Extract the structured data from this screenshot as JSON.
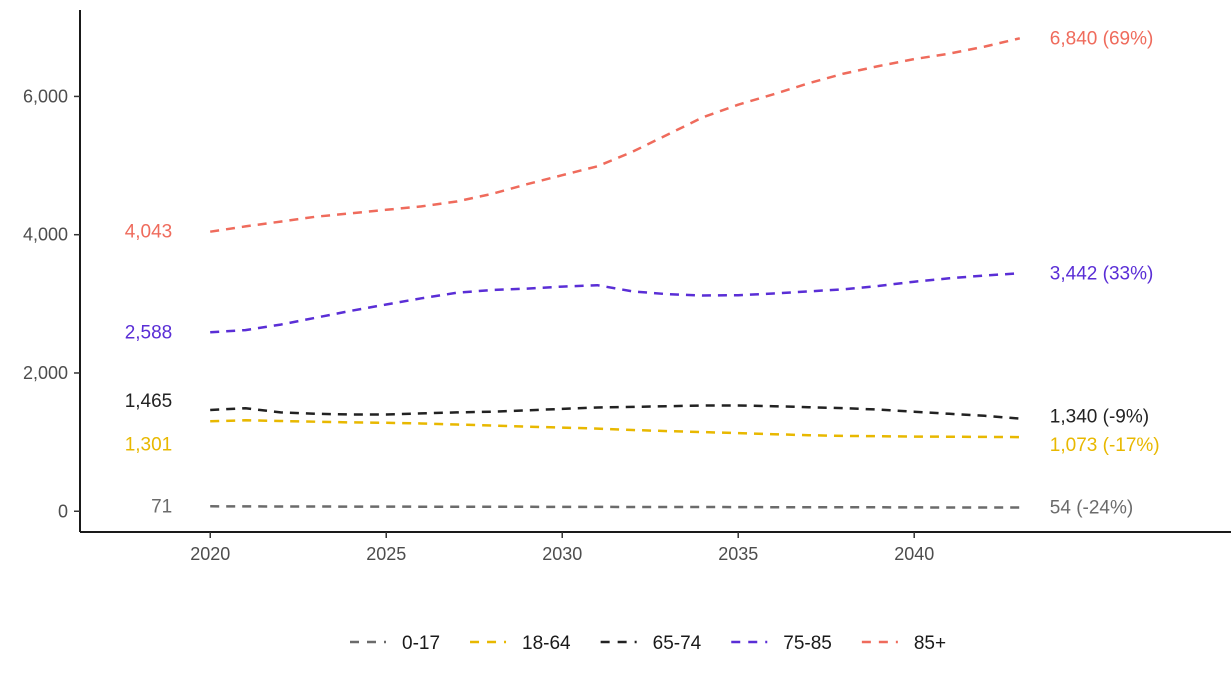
{
  "chart_data": {
    "type": "line",
    "title": "",
    "xlabel": "",
    "ylabel": "",
    "x": [
      2020,
      2021,
      2022,
      2023,
      2024,
      2025,
      2026,
      2027,
      2028,
      2029,
      2030,
      2031,
      2032,
      2033,
      2034,
      2035,
      2036,
      2037,
      2038,
      2039,
      2040,
      2041,
      2042,
      2043
    ],
    "xlim": [
      2016.3,
      2049
    ],
    "ylim": [
      -300,
      7250
    ],
    "x_ticks": [
      2020,
      2025,
      2030,
      2035,
      2040
    ],
    "x_tick_labels": [
      "2020",
      "2025",
      "2030",
      "2035",
      "2040"
    ],
    "y_ticks": [
      0,
      2000,
      4000,
      6000
    ],
    "y_tick_labels": [
      "0",
      "2,000",
      "4,000",
      "6,000"
    ],
    "grid": false,
    "line_style": "dashed",
    "legend_position": "bottom",
    "series": [
      {
        "name": "0-17",
        "color": "#6b6b6b",
        "values": [
          71,
          70,
          69,
          69,
          68,
          67,
          66,
          66,
          65,
          64,
          63,
          63,
          62,
          61,
          61,
          60,
          59,
          58,
          58,
          57,
          56,
          55,
          55,
          54
        ],
        "start_label": "71",
        "end_label": "54 (-24%)"
      },
      {
        "name": "18-64",
        "color": "#e8b800",
        "values": [
          1301,
          1315,
          1305,
          1295,
          1285,
          1280,
          1270,
          1255,
          1240,
          1225,
          1210,
          1195,
          1175,
          1160,
          1145,
          1130,
          1115,
          1100,
          1090,
          1085,
          1080,
          1078,
          1075,
          1073
        ],
        "start_label": "1,301",
        "end_label": "1,073 (-17%)"
      },
      {
        "name": "65-74",
        "color": "#222222",
        "values": [
          1465,
          1490,
          1430,
          1410,
          1400,
          1400,
          1415,
          1430,
          1440,
          1460,
          1480,
          1500,
          1510,
          1520,
          1530,
          1530,
          1520,
          1505,
          1490,
          1470,
          1440,
          1410,
          1380,
          1340
        ],
        "start_label": "1,465",
        "end_label": "1,340 (-9%)"
      },
      {
        "name": "75-85",
        "color": "#5a2ed6",
        "values": [
          2588,
          2620,
          2700,
          2800,
          2900,
          2990,
          3080,
          3160,
          3200,
          3220,
          3250,
          3270,
          3180,
          3140,
          3120,
          3125,
          3150,
          3180,
          3210,
          3260,
          3320,
          3370,
          3410,
          3442
        ],
        "start_label": "2,588",
        "end_label": "3,442 (33%)"
      },
      {
        "name": "85+",
        "color": "#ef6b5c",
        "values": [
          4043,
          4120,
          4190,
          4260,
          4310,
          4360,
          4410,
          4480,
          4590,
          4730,
          4860,
          4990,
          5200,
          5450,
          5700,
          5880,
          6030,
          6190,
          6330,
          6440,
          6540,
          6620,
          6720,
          6840
        ],
        "start_label": "4,043",
        "end_label": "6,840 (69%)"
      }
    ]
  }
}
